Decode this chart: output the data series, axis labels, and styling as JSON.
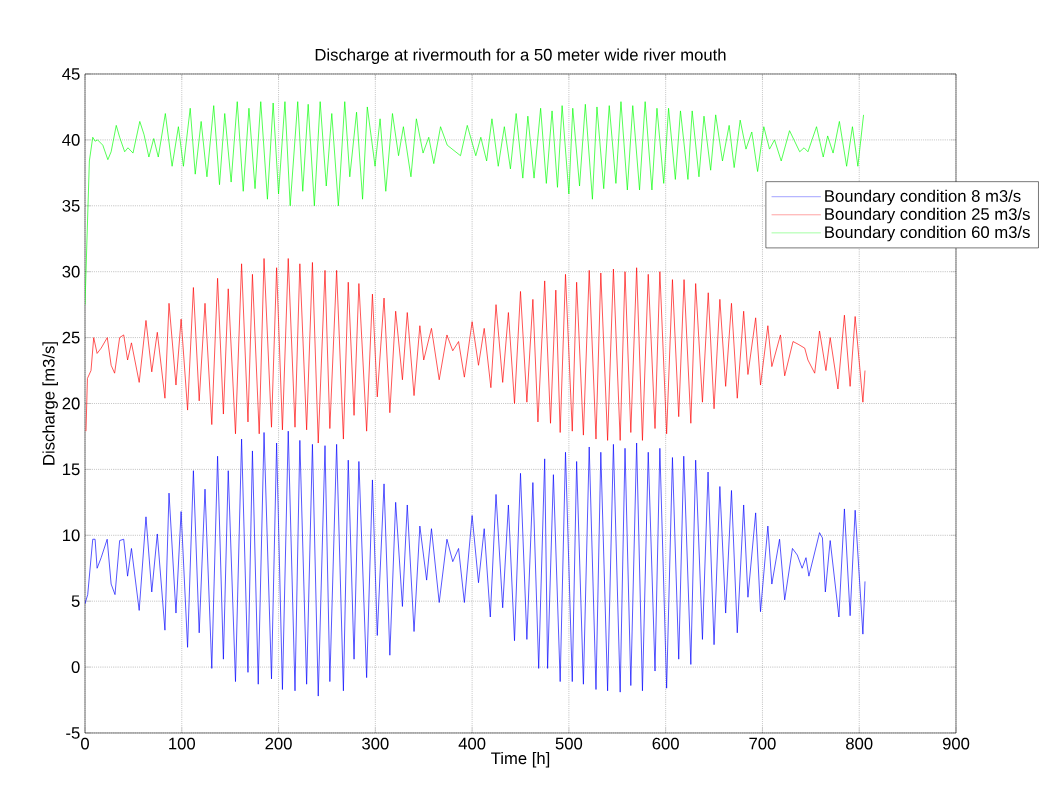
{
  "chart_data": {
    "type": "line",
    "title": "Discharge at rivermouth for a 50 meter wide river mouth",
    "xlabel": "Time [h]",
    "ylabel": "Discharge [m3/s]",
    "xlim": [
      0,
      900
    ],
    "xticks": [
      0,
      100,
      200,
      300,
      400,
      500,
      600,
      700,
      800,
      900
    ],
    "ylim": [
      -5,
      45
    ],
    "yticks": [
      -5,
      0,
      5,
      10,
      15,
      20,
      25,
      30,
      35,
      40,
      45
    ],
    "grid": true,
    "legend": "top right",
    "line_style": "solid",
    "series": [
      {
        "name": "Boundary condition 8 m3/s",
        "color": "#0000ff",
        "x": [
          0,
          2.8,
          8,
          10.4,
          12.5,
          16.7,
          22.9,
          27,
          31,
          35.8,
          40,
          44,
          48,
          56,
          63,
          69,
          74.7,
          82.6,
          86.8,
          94,
          99.3,
          106,
          112,
          118,
          124,
          131,
          137,
          143,
          148,
          155.5,
          161.8,
          168.4,
          173,
          179,
          185,
          192.7,
          198,
          204,
          210,
          217,
          222,
          229,
          235,
          241,
          248,
          253,
          260,
          267,
          272,
          278,
          283,
          291,
          297,
          302,
          309,
          315,
          321,
          328,
          333,
          340,
          346,
          353,
          358,
          366,
          374,
          380,
          386,
          392,
          400,
          406.6,
          412.5,
          418.8,
          424.7,
          431.6,
          437.5,
          443.8,
          450,
          456.6,
          462.8,
          468.8,
          475,
          478,
          484,
          491,
          496.5,
          503.5,
          508,
          515,
          521,
          528,
          533,
          540,
          546,
          553,
          558,
          564,
          570,
          576,
          582,
          589,
          594,
          601,
          607,
          613.5,
          618.7,
          626,
          631,
          638,
          643.8,
          650,
          656,
          662,
          668,
          674,
          680.6,
          685,
          693,
          698,
          705.6,
          709.7,
          717.7,
          723,
          731,
          736,
          741,
          745,
          748,
          759,
          762,
          765,
          770,
          779,
          784.7,
          790.6,
          795.8,
          803.8,
          806
        ],
        "values": [
          4.8,
          5.5,
          9.7,
          9.7,
          7.5,
          8.3,
          9.7,
          6.3,
          5.5,
          9.6,
          9.7,
          6.9,
          9,
          4.3,
          11.4,
          5.7,
          10.1,
          2.8,
          13.2,
          4.1,
          11.8,
          1.5,
          14.9,
          2.6,
          13.5,
          -0.1,
          16,
          0.6,
          14.9,
          -1.1,
          17.3,
          -0.4,
          16.4,
          -1.3,
          17.8,
          -0.9,
          17,
          -1.7,
          17.9,
          -1.8,
          17.2,
          -1.3,
          16.9,
          -2.2,
          16.8,
          -1.1,
          16.9,
          -1.8,
          15.7,
          0.6,
          15.6,
          -0.8,
          14.2,
          2.4,
          13.9,
          0.9,
          12.5,
          4.6,
          12.3,
          2.7,
          10.7,
          6.6,
          10.5,
          4.9,
          9.7,
          8,
          9,
          4.9,
          11.5,
          6.4,
          10.5,
          3.8,
          13.1,
          4.5,
          12.3,
          2,
          14.7,
          2.1,
          14,
          -0.1,
          15.8,
          -0.1,
          14.6,
          -1.1,
          16.3,
          -1.1,
          15.6,
          -1.3,
          16.7,
          -1.7,
          16.3,
          -1.8,
          16.9,
          -1.9,
          16.6,
          -1.4,
          17,
          -1.8,
          16.3,
          -0.3,
          16.6,
          -1.6,
          15.9,
          0.6,
          16,
          0.2,
          15.7,
          2.1,
          14.8,
          1.7,
          13.7,
          4.1,
          13.4,
          2.6,
          12.3,
          5.3,
          11.7,
          4.2,
          10.7,
          6.3,
          9.7,
          5.1,
          9,
          8.5,
          7.5,
          8.3,
          6.9,
          10.2,
          9.8,
          5.7,
          9.6,
          3.8,
          12,
          3.9,
          11.9,
          2.5,
          6.5
        ]
      },
      {
        "name": "Boundary condition 25 m3/s",
        "color": "#ff0000",
        "x": [
          1,
          2.5,
          6.2,
          9,
          12.5,
          16.7,
          23,
          27,
          30.6,
          35.8,
          40,
          44,
          48,
          56,
          63,
          69,
          74.7,
          82.6,
          86.8,
          94,
          99.3,
          106,
          112,
          118,
          124,
          131,
          137,
          143,
          148,
          155.5,
          161.8,
          168.4,
          173,
          180,
          185,
          192.7,
          198,
          204,
          210,
          217,
          222,
          229,
          235,
          241,
          248,
          253,
          260,
          267,
          272,
          278,
          283,
          291,
          297,
          302,
          309,
          315,
          321,
          328,
          333,
          340,
          346,
          350,
          358,
          366,
          374,
          380,
          386,
          392,
          400,
          406.6,
          412.5,
          419.4,
          424.7,
          431.6,
          437.5,
          443.8,
          450,
          456.6,
          462.8,
          468,
          475,
          481,
          486.5,
          491,
          496.5,
          503.5,
          508,
          515,
          521,
          528,
          533,
          540,
          546,
          553,
          558,
          564,
          570,
          576,
          582,
          589,
          594,
          601,
          607,
          613.5,
          619,
          626,
          631,
          638,
          644,
          650,
          656,
          662,
          668,
          674,
          680.6,
          685,
          693,
          698,
          705.6,
          709.7,
          718.6,
          723,
          731.6,
          736.8,
          743.7,
          747,
          754,
          759,
          765.6,
          770,
          778,
          784.7,
          790.6,
          795.8,
          803.8,
          806
        ],
        "values": [
          17.9,
          21.9,
          22.5,
          25,
          23.8,
          24.2,
          25,
          22.9,
          22.3,
          25,
          25.2,
          23.3,
          24.6,
          21.6,
          26.3,
          22.4,
          25.4,
          20.4,
          27.6,
          21.4,
          26.4,
          19.5,
          28.8,
          20.2,
          27.6,
          18.4,
          29.5,
          19.2,
          28.7,
          17.7,
          30.6,
          18.6,
          29.8,
          17.7,
          31,
          18.2,
          30.3,
          18,
          31,
          18.2,
          30.6,
          18,
          30.7,
          17,
          30.1,
          18.1,
          30.1,
          17.3,
          29.2,
          19.1,
          29.1,
          17.9,
          28.3,
          20.5,
          28,
          19.3,
          27,
          21.8,
          26.9,
          20.6,
          25.9,
          23.3,
          25.7,
          21.8,
          25.2,
          24,
          24.7,
          22,
          26.2,
          22.9,
          25.7,
          21.2,
          27.5,
          21.6,
          26.9,
          20,
          28.5,
          20.1,
          27.9,
          18.6,
          29.3,
          18.5,
          28.6,
          17.8,
          29.8,
          17.9,
          29.2,
          17.6,
          30.1,
          17.3,
          29.9,
          17.2,
          30.2,
          17.2,
          30,
          17.8,
          30.3,
          17.2,
          29.8,
          18.1,
          30,
          17.7,
          29.4,
          19,
          29.4,
          18.5,
          29.1,
          20.1,
          28.4,
          19.6,
          27.9,
          21.3,
          27.6,
          20.4,
          27,
          22.2,
          26.5,
          21.4,
          25.9,
          22.8,
          25.2,
          22.1,
          24.7,
          24.5,
          24.2,
          23.3,
          22.3,
          25.5,
          22.5,
          25,
          21.1,
          26.7,
          21.3,
          26.6,
          20.1,
          22.5
        ]
      },
      {
        "name": "Boundary condition 60 m3/s",
        "color": "#00ff00",
        "x": [
          0,
          4.5,
          8,
          10.4,
          13,
          18.4,
          23.6,
          27,
          32.3,
          35.8,
          41,
          44.4,
          49.6,
          56.6,
          61,
          66,
          71,
          75.7,
          83,
          90,
          96.5,
          101.7,
          108.7,
          113.9,
          120,
          126,
          133,
          139,
          144.4,
          151,
          157.3,
          163.5,
          169.4,
          175.7,
          181.6,
          188.5,
          194.4,
          200,
          206.6,
          212,
          219.8,
          225,
          230.6,
          237,
          243,
          249.3,
          255,
          261.8,
          268.4,
          273.6,
          280.6,
          286.8,
          291.7,
          299.7,
          304.9,
          310.8,
          317.7,
          324,
          329,
          336.8,
          342.4,
          349.3,
          355.2,
          360.4,
          367.4,
          374.3,
          388,
          395,
          403.8,
          409,
          415,
          420.5,
          427,
          433.3,
          439.6,
          445.5,
          452.4,
          457.6,
          464,
          470.8,
          476.7,
          482.6,
          488.2,
          493,
          500,
          504,
          511,
          517,
          524.3,
          529,
          536,
          541.7,
          548.6,
          553.8,
          560.4,
          566,
          573,
          578.8,
          585.8,
          591,
          598,
          603,
          610,
          615.3,
          623,
          627.4,
          634.4,
          639.6,
          646.5,
          651.7,
          658.7,
          665.6,
          670.8,
          677,
          683,
          689,
          695,
          701.4,
          707.3,
          712.5,
          719.4,
          728,
          738.5,
          743,
          747,
          755.9,
          762.8,
          767.4,
          773,
          779.5,
          787,
          793,
          798.6,
          804.5
        ],
        "values": [
          27.5,
          38.4,
          40.2,
          39.9,
          40,
          39.6,
          38.5,
          39.1,
          41.1,
          40.2,
          39.1,
          39.4,
          39,
          41.4,
          40.4,
          38.7,
          40.1,
          38.7,
          42,
          38,
          41,
          38,
          42.4,
          37.4,
          41.4,
          37.2,
          42.6,
          36.6,
          42,
          36.8,
          42.9,
          36.1,
          42.4,
          36.3,
          42.9,
          35.5,
          42.8,
          35.9,
          42.9,
          35,
          42.9,
          36.1,
          42.7,
          35,
          42.9,
          36.5,
          42,
          35,
          42.9,
          37.2,
          42.1,
          35.5,
          42.5,
          38,
          41.6,
          36.1,
          42,
          38.8,
          41,
          37.2,
          41.6,
          39,
          40.2,
          38.2,
          41,
          39.6,
          38.8,
          41.1,
          38.8,
          40.2,
          38.4,
          41.6,
          38,
          41,
          37.8,
          42,
          37.1,
          41.8,
          37.1,
          42.4,
          36.7,
          42.2,
          36.4,
          42.6,
          35.9,
          42.4,
          36.5,
          42.7,
          35.5,
          42.5,
          36.3,
          42.6,
          36.7,
          42.9,
          36.2,
          42.6,
          36.2,
          42.9,
          36.2,
          42.4,
          36.7,
          42.4,
          37,
          42.2,
          37,
          42.2,
          37.2,
          41.8,
          37.7,
          41.9,
          38.4,
          41.1,
          37.9,
          41.5,
          39.3,
          40.6,
          37.6,
          41,
          39.3,
          40,
          38.4,
          40.7,
          39.1,
          39.4,
          39.1,
          41,
          38.7,
          40.3,
          39,
          41.4,
          38,
          41,
          38,
          41.9
        ]
      }
    ]
  }
}
